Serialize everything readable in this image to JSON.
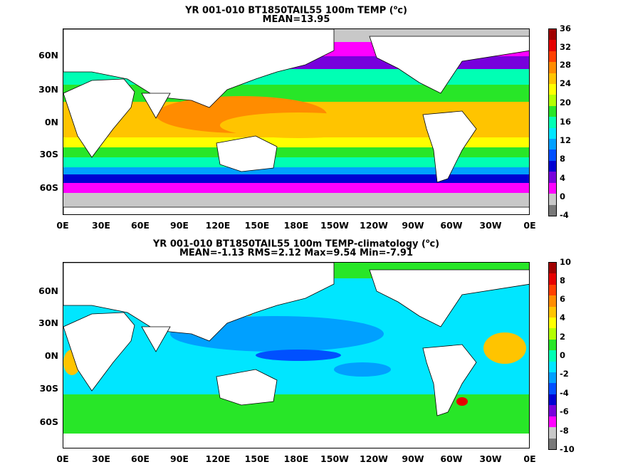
{
  "panels": [
    {
      "title_line1": "YR 001-010 BT1850TAIL55 100m TEMP (",
      "title_unit": "o",
      "title_unit_tail": "c)",
      "title_line2": "MEAN=13.95",
      "colorbar_labels": [
        "36",
        "32",
        "28",
        "24",
        "20",
        "16",
        "12",
        "8",
        "4",
        "0",
        "-4"
      ],
      "colorbar_colors": [
        "#a00000",
        "#e60000",
        "#ff4000",
        "#ff8c00",
        "#ffc400",
        "#ffff00",
        "#b4ff00",
        "#28e628",
        "#00ffb4",
        "#00e6ff",
        "#00a0ff",
        "#0050ff",
        "#0000d2",
        "#7800dc",
        "#ff00ff",
        "#c8c8c8",
        "#787878"
      ]
    },
    {
      "title_line1": "YR 001-010 BT1850TAIL55 100m TEMP-climatology (",
      "title_unit": "o",
      "title_unit_tail": "c)",
      "title_line2": "MEAN=-1.13   RMS=2.12   Max=9.54   Min=-7.91",
      "colorbar_labels": [
        "10",
        "8",
        "6",
        "4",
        "2",
        "0",
        "-2",
        "-4",
        "-6",
        "-8",
        "-10"
      ],
      "colorbar_colors": [
        "#a00000",
        "#e60000",
        "#ff4000",
        "#ff8c00",
        "#ffc400",
        "#ffff00",
        "#b4ff00",
        "#28e628",
        "#00ffb4",
        "#00e6ff",
        "#00a0ff",
        "#0050ff",
        "#0000d2",
        "#7800dc",
        "#ff00ff",
        "#c8c8c8",
        "#787878"
      ]
    }
  ],
  "y_axis_labels": [
    "60N",
    "30N",
    "0N",
    "30S",
    "60S"
  ],
  "x_axis_labels": [
    "0E",
    "30E",
    "60E",
    "90E",
    "120E",
    "150E",
    "180E",
    "150W",
    "120W",
    "90W",
    "60W",
    "30W",
    "0E"
  ]
}
